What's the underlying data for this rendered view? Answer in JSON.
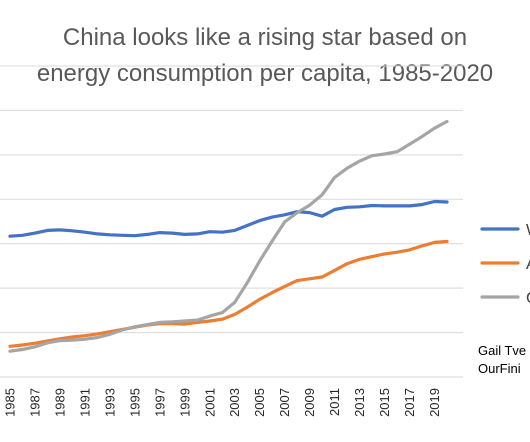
{
  "chart_data": {
    "type": "line",
    "title": [
      "China looks like a rising star based on",
      "energy consumption per capita, 1985-2020"
    ],
    "x_ticks": [
      "1985",
      "1987",
      "1989",
      "1991",
      "1993",
      "1995",
      "1997",
      "1999",
      "2001",
      "2003",
      "2005",
      "2007",
      "2009",
      "2011",
      "2013",
      "2015",
      "2017",
      "2019"
    ],
    "x_range": [
      1985,
      2020
    ],
    "y_range": [
      0,
      7
    ],
    "grid": true,
    "x": [
      1985,
      1986,
      1987,
      1988,
      1989,
      1990,
      1991,
      1992,
      1993,
      1994,
      1995,
      1996,
      1997,
      1998,
      1999,
      2000,
      2001,
      2002,
      2003,
      2004,
      2005,
      2006,
      2007,
      2008,
      2009,
      2010,
      2011,
      2012,
      2013,
      2014,
      2015,
      2016,
      2017,
      2018,
      2019,
      2020
    ],
    "series": [
      {
        "name": "W",
        "color": "#4472C4",
        "values": [
          3.17,
          3.19,
          3.24,
          3.3,
          3.31,
          3.29,
          3.26,
          3.22,
          3.2,
          3.19,
          3.18,
          3.21,
          3.25,
          3.24,
          3.21,
          3.22,
          3.27,
          3.26,
          3.3,
          3.41,
          3.52,
          3.6,
          3.65,
          3.72,
          3.7,
          3.62,
          3.77,
          3.82,
          3.83,
          3.86,
          3.85,
          3.85,
          3.85,
          3.88,
          3.95,
          3.94
        ]
      },
      {
        "name": "A",
        "color": "#ED7D31",
        "values": [
          0.69,
          0.72,
          0.76,
          0.81,
          0.86,
          0.9,
          0.93,
          0.97,
          1.02,
          1.07,
          1.12,
          1.17,
          1.2,
          1.2,
          1.19,
          1.23,
          1.26,
          1.3,
          1.41,
          1.57,
          1.75,
          1.9,
          2.04,
          2.17,
          2.21,
          2.25,
          2.4,
          2.55,
          2.65,
          2.71,
          2.77,
          2.81,
          2.86,
          2.95,
          3.03,
          3.05
        ]
      },
      {
        "name": "C",
        "color": "#A5A5A5",
        "values": [
          0.58,
          0.62,
          0.68,
          0.77,
          0.82,
          0.83,
          0.85,
          0.89,
          0.96,
          1.06,
          1.13,
          1.18,
          1.23,
          1.24,
          1.26,
          1.28,
          1.37,
          1.45,
          1.68,
          2.12,
          2.61,
          3.06,
          3.49,
          3.7,
          3.87,
          4.1,
          4.49,
          4.7,
          4.86,
          4.98,
          5.02,
          5.07,
          5.24,
          5.41,
          5.6,
          5.75
        ]
      }
    ]
  },
  "credit": {
    "line1": "Gail Tve",
    "line2": "OurFini"
  }
}
